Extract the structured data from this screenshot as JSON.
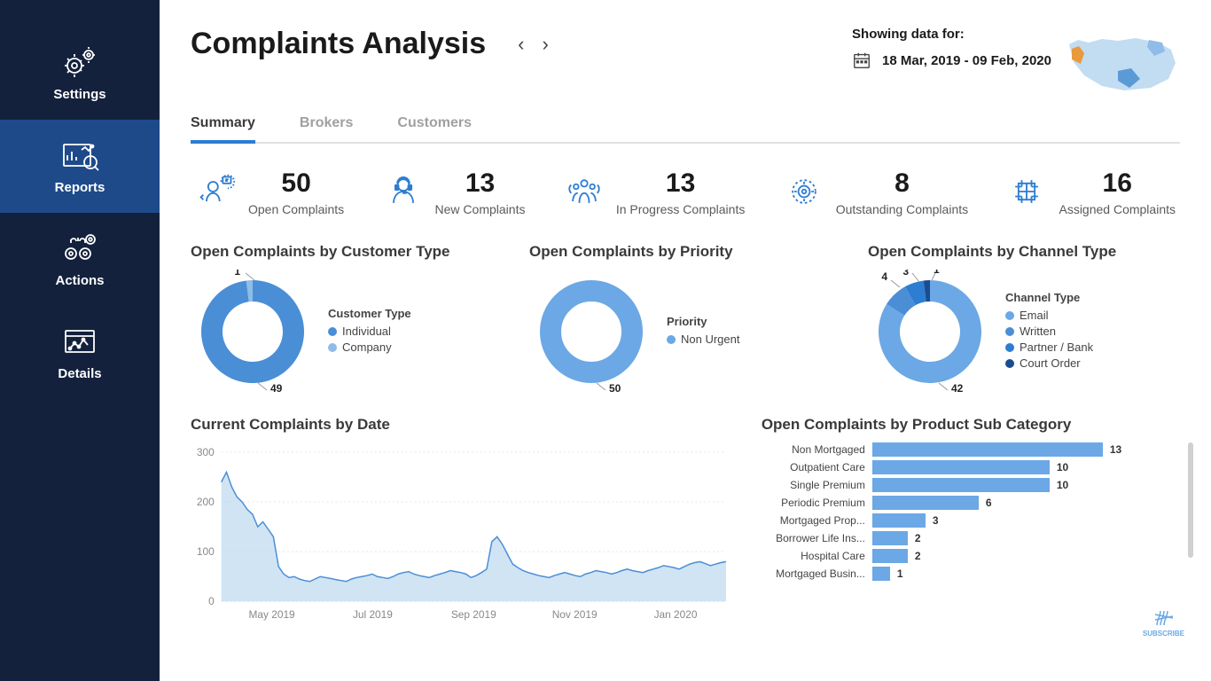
{
  "sidebar": {
    "items": [
      {
        "label": "Settings"
      },
      {
        "label": "Reports"
      },
      {
        "label": "Actions"
      },
      {
        "label": "Details"
      }
    ],
    "active_index": 1,
    "bg_color": "#14213d",
    "active_bg": "#1e4a8a"
  },
  "header": {
    "title": "Complaints Analysis",
    "showing_label": "Showing data for:",
    "date_range": "18 Mar, 2019 - 09 Feb, 2020"
  },
  "tabs": {
    "items": [
      "Summary",
      "Brokers",
      "Customers"
    ],
    "active_index": 0
  },
  "kpis": [
    {
      "value": "50",
      "label": "Open Complaints"
    },
    {
      "value": "13",
      "label": "New Complaints"
    },
    {
      "value": "13",
      "label": "In Progress Complaints"
    },
    {
      "value": "8",
      "label": "Outstanding Complaints"
    },
    {
      "value": "16",
      "label": "Assigned Complaints"
    }
  ],
  "donut_customer": {
    "title": "Open Complaints by Customer Type",
    "legend_title": "Customer Type",
    "slices": [
      {
        "label": "Individual",
        "value": 49,
        "color": "#4a8ed6"
      },
      {
        "label": "Company",
        "value": 1,
        "color": "#8fbce8"
      }
    ],
    "inner_radius": 34,
    "outer_radius": 58
  },
  "donut_priority": {
    "title": "Open Complaints by Priority",
    "legend_title": "Priority",
    "slices": [
      {
        "label": "Non Urgent",
        "value": 50,
        "color": "#6ba8e5"
      }
    ],
    "inner_radius": 34,
    "outer_radius": 58
  },
  "donut_channel": {
    "title": "Open Complaints by Channel Type",
    "legend_title": "Channel Type",
    "slices": [
      {
        "label": "Email",
        "value": 42,
        "color": "#6ba8e5"
      },
      {
        "label": "Written",
        "value": 4,
        "color": "#4a8ed6"
      },
      {
        "label": "Partner / Bank",
        "value": 3,
        "color": "#2d7dd2"
      },
      {
        "label": "Court Order",
        "value": 1,
        "color": "#1a4d8f"
      }
    ],
    "inner_radius": 34,
    "outer_radius": 58
  },
  "area_chart": {
    "title": "Current Complaints by Date",
    "y_ticks": [
      0,
      100,
      200,
      300
    ],
    "ymax": 300,
    "x_labels": [
      "May 2019",
      "Jul 2019",
      "Sep 2019",
      "Nov 2019",
      "Jan 2020"
    ],
    "line_color": "#4a8ed6",
    "fill_color": "#bcd8f0",
    "grid_color": "#e5e5e5",
    "series": [
      240,
      260,
      230,
      210,
      200,
      185,
      175,
      150,
      160,
      145,
      130,
      70,
      55,
      48,
      50,
      45,
      42,
      40,
      45,
      50,
      48,
      46,
      44,
      42,
      40,
      45,
      48,
      50,
      52,
      55,
      50,
      48,
      46,
      50,
      55,
      58,
      60,
      55,
      52,
      50,
      48,
      52,
      55,
      58,
      62,
      60,
      58,
      55,
      48,
      52,
      58,
      65,
      120,
      130,
      115,
      95,
      75,
      68,
      62,
      58,
      55,
      52,
      50,
      48,
      52,
      55,
      58,
      55,
      52,
      50,
      55,
      58,
      62,
      60,
      58,
      55,
      58,
      62,
      65,
      62,
      60,
      58,
      62,
      65,
      68,
      72,
      70,
      68,
      65,
      70,
      75,
      78,
      80,
      76,
      72,
      75,
      78,
      80
    ]
  },
  "hbar_chart": {
    "title": "Open Complaints by Product Sub Category",
    "max": 13,
    "bar_color": "#6ba8e5",
    "rows": [
      {
        "label": "Non Mortgaged",
        "value": 13
      },
      {
        "label": "Outpatient Care",
        "value": 10
      },
      {
        "label": "Single Premium",
        "value": 10
      },
      {
        "label": "Periodic Premium",
        "value": 6
      },
      {
        "label": "Mortgaged Prop...",
        "value": 3
      },
      {
        "label": "Borrower Life Ins...",
        "value": 2
      },
      {
        "label": "Hospital Care",
        "value": 2
      },
      {
        "label": "Mortgaged Busin...",
        "value": 1
      }
    ]
  },
  "subscribe_label": "SUBSCRIBE",
  "accent": "#2d7dd2"
}
